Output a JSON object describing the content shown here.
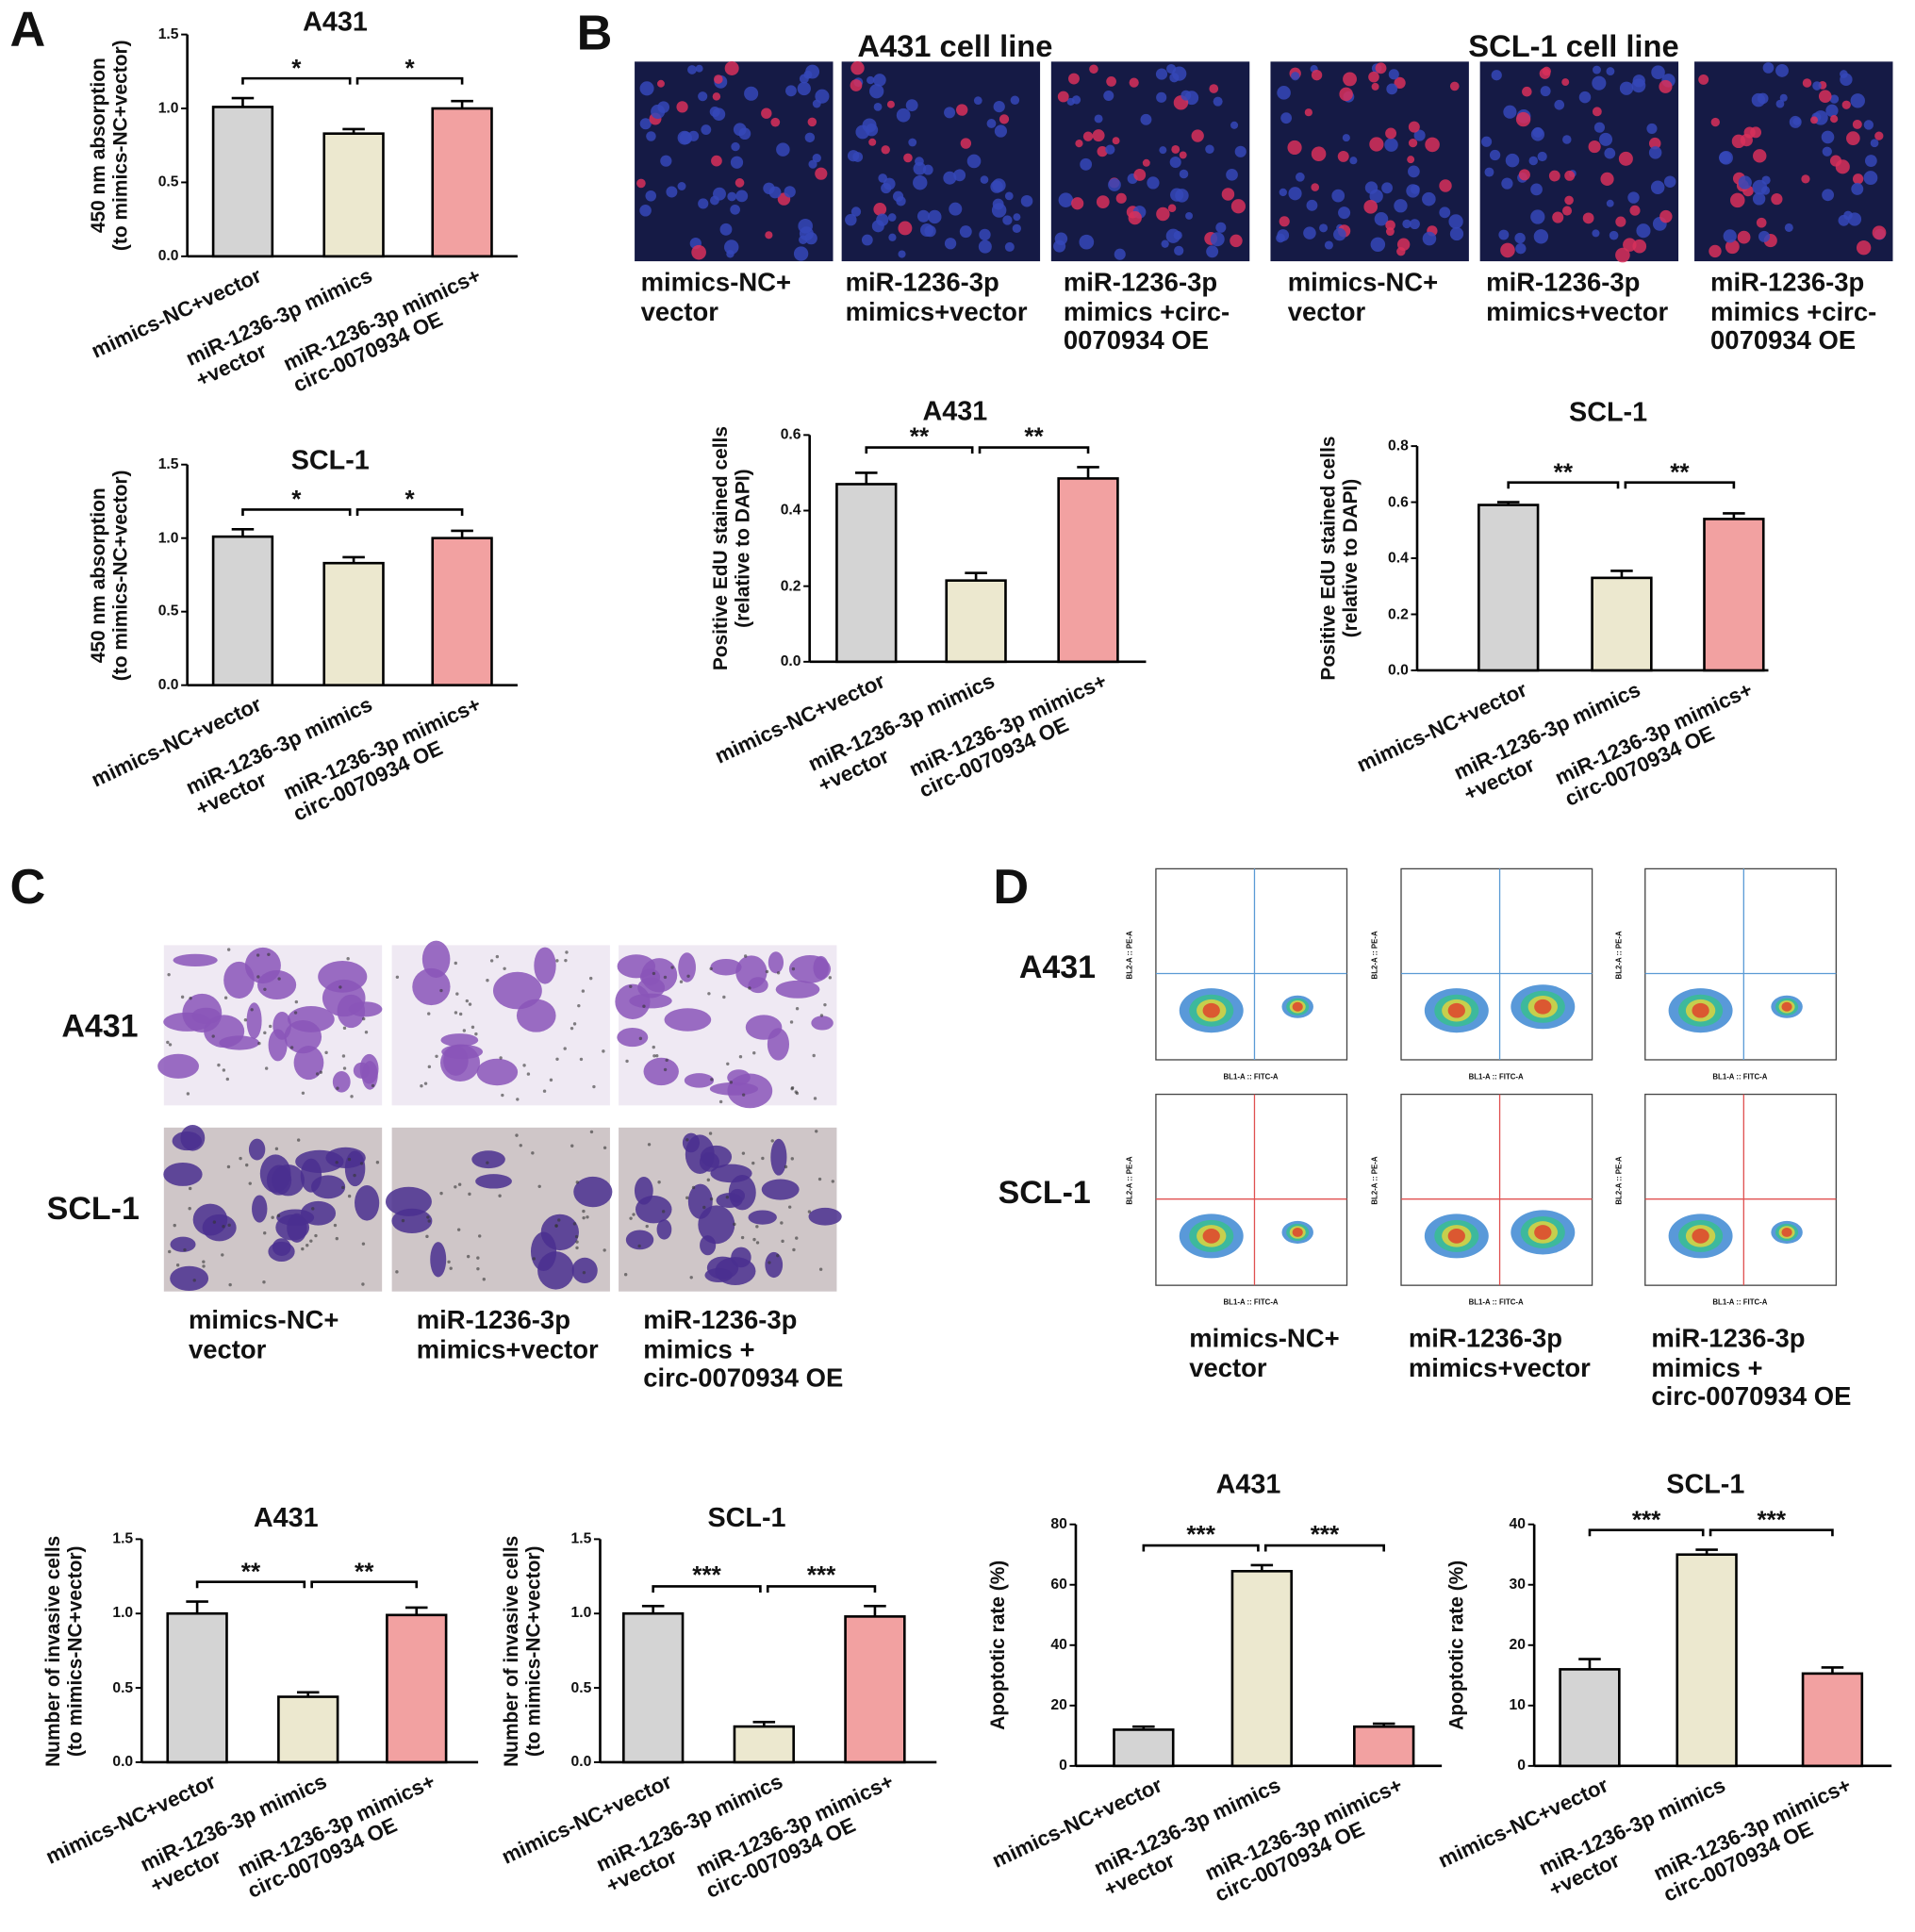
{
  "panel_labels": [
    "A",
    "B",
    "C",
    "D"
  ],
  "edu_images": {
    "groups": [
      {
        "title": "A431 cell line",
        "captions": [
          "mimics-NC+\nvector",
          "miR-1236-3p\nmimics+vector",
          "miR-1236-3p\nmimics +circ-\n0070934 OE"
        ]
      },
      {
        "title": "SCL-1 cell line",
        "captions": [
          "mimics-NC+\nvector",
          "miR-1236-3p\nmimics+vector",
          "miR-1236-3p\nmimics +circ-\n0070934 OE"
        ]
      }
    ]
  },
  "transwell_images": {
    "rows": [
      "A431",
      "SCL-1"
    ],
    "captions": [
      "mimics-NC+\nvector",
      "miR-1236-3p\nmimics+vector",
      "miR-1236-3p\nmimics +\ncirc-0070934 OE"
    ]
  },
  "flow_plots": {
    "rows": [
      "A431",
      "SCL-1"
    ],
    "x_label": "BL1-A :: FITC-A",
    "y_label": "BL2-A :: PE-A",
    "captions": [
      "mimics-NC+\nvector",
      "miR-1236-3p\nmimics+vector",
      "miR-1236-3p\nmimics +\ncirc-0070934 OE"
    ]
  },
  "chart_data": [
    {
      "type": "bar",
      "title": "A431",
      "ylabel": "450 nm absorption\n(to mimics-NC+vector)",
      "categories": [
        "mimics-NC+vector",
        "miR-1236-3p mimics\n+vector",
        "miR-1236-3p mimics+\ncirc-0070934 OE"
      ],
      "values": [
        1.01,
        0.83,
        1.0
      ],
      "errors": [
        0.06,
        0.03,
        0.05
      ],
      "colors": [
        "#d4d4d4",
        "#ece8cf",
        "#f2a1a1"
      ],
      "ylim": [
        0,
        1.5
      ],
      "yticks": [
        {
          "value": 0,
          "label": "0.0"
        },
        0.5,
        {
          "value": 1,
          "label": "1.0"
        },
        1.5
      ],
      "significance": [
        "*",
        "*"
      ]
    },
    {
      "type": "bar",
      "title": "SCL-1",
      "ylabel": "450 nm absorption\n(to mimics-NC+vector)",
      "categories": [
        "mimics-NC+vector",
        "miR-1236-3p mimics\n+vector",
        "miR-1236-3p mimics+\ncirc-0070934 OE"
      ],
      "values": [
        1.01,
        0.83,
        1.0
      ],
      "errors": [
        0.05,
        0.04,
        0.05
      ],
      "colors": [
        "#d4d4d4",
        "#ece8cf",
        "#f2a1a1"
      ],
      "ylim": [
        0,
        1.5
      ],
      "yticks": [
        {
          "value": 0,
          "label": "0.0"
        },
        0.5,
        {
          "value": 1,
          "label": "1.0"
        },
        1.5
      ],
      "significance": [
        "*",
        "*"
      ]
    },
    {
      "type": "bar",
      "title": "A431",
      "ylabel": "Positive EdU stained cells\n(relative to DAPI)",
      "categories": [
        "mimics-NC+vector",
        "miR-1236-3p mimics\n+vector",
        "miR-1236-3p mimics+\ncirc-0070934 OE"
      ],
      "values": [
        0.47,
        0.215,
        0.485
      ],
      "errors": [
        0.03,
        0.02,
        0.03
      ],
      "colors": [
        "#d4d4d4",
        "#ece8cf",
        "#f2a1a1"
      ],
      "ylim": [
        0,
        0.6
      ],
      "yticks": [
        {
          "value": 0,
          "label": "0.0"
        },
        0.2,
        0.4,
        0.6
      ],
      "significance": [
        "**",
        "**"
      ]
    },
    {
      "type": "bar",
      "title": "SCL-1",
      "ylabel": "Positive EdU stained cells\n(relative to DAPI)",
      "categories": [
        "mimics-NC+vector",
        "miR-1236-3p mimics\n+vector",
        "miR-1236-3p mimics+\ncirc-0070934 OE"
      ],
      "values": [
        0.59,
        0.33,
        0.54
      ],
      "errors": [
        0.01,
        0.025,
        0.02
      ],
      "colors": [
        "#d4d4d4",
        "#ece8cf",
        "#f2a1a1"
      ],
      "ylim": [
        0,
        0.8
      ],
      "yticks": [
        {
          "value": 0,
          "label": "0.0"
        },
        0.2,
        0.4,
        0.6,
        0.8
      ],
      "significance": [
        "**",
        "**"
      ]
    },
    {
      "type": "bar",
      "title": "A431",
      "ylabel": "Number of invasive cells\n(to mimics-NC+vector)",
      "categories": [
        "mimics-NC+vector",
        "miR-1236-3p mimics\n+vector",
        "miR-1236-3p mimics+\ncirc-0070934 OE"
      ],
      "values": [
        1.0,
        0.44,
        0.99
      ],
      "errors": [
        0.08,
        0.03,
        0.05
      ],
      "colors": [
        "#d4d4d4",
        "#ece8cf",
        "#f2a1a1"
      ],
      "ylim": [
        0,
        1.5
      ],
      "yticks": [
        {
          "value": 0,
          "label": "0.0"
        },
        0.5,
        {
          "value": 1,
          "label": "1.0"
        },
        1.5
      ],
      "significance": [
        "**",
        "**"
      ]
    },
    {
      "type": "bar",
      "title": "SCL-1",
      "ylabel": "Number of invasive cells\n(to mimics-NC+vector)",
      "categories": [
        "mimics-NC+vector",
        "miR-1236-3p mimics\n+vector",
        "miR-1236-3p mimics+\ncirc-0070934 OE"
      ],
      "values": [
        1.0,
        0.24,
        0.98
      ],
      "errors": [
        0.05,
        0.03,
        0.07
      ],
      "colors": [
        "#d4d4d4",
        "#ece8cf",
        "#f2a1a1"
      ],
      "ylim": [
        0,
        1.5
      ],
      "yticks": [
        {
          "value": 0,
          "label": "0.0"
        },
        0.5,
        {
          "value": 1,
          "label": "1.0"
        },
        1.5
      ],
      "significance": [
        "***",
        "***"
      ]
    },
    {
      "type": "bar",
      "title": "A431",
      "ylabel": "Apoptotic rate (%)",
      "categories": [
        "mimics-NC+vector",
        "miR-1236-3p mimics\n+vector",
        "miR-1236-3p mimics+\ncirc-0070934 OE"
      ],
      "values": [
        12,
        64.5,
        13
      ],
      "errors": [
        1,
        2,
        1
      ],
      "colors": [
        "#d4d4d4",
        "#ece8cf",
        "#f2a1a1"
      ],
      "ylim": [
        0,
        80
      ],
      "yticks": [
        0,
        20,
        40,
        60,
        80
      ],
      "significance": [
        "***",
        "***"
      ]
    },
    {
      "type": "bar",
      "title": "SCL-1",
      "ylabel": "Apoptotic rate (%)",
      "categories": [
        "mimics-NC+vector",
        "miR-1236-3p mimics\n+vector",
        "miR-1236-3p mimics+\ncirc-0070934 OE"
      ],
      "values": [
        16,
        35,
        15.3
      ],
      "errors": [
        1.7,
        0.8,
        1
      ],
      "colors": [
        "#d4d4d4",
        "#ece8cf",
        "#f2a1a1"
      ],
      "ylim": [
        0,
        40
      ],
      "yticks": [
        0,
        10,
        20,
        30,
        40
      ],
      "significance": [
        "***",
        "***"
      ]
    }
  ]
}
